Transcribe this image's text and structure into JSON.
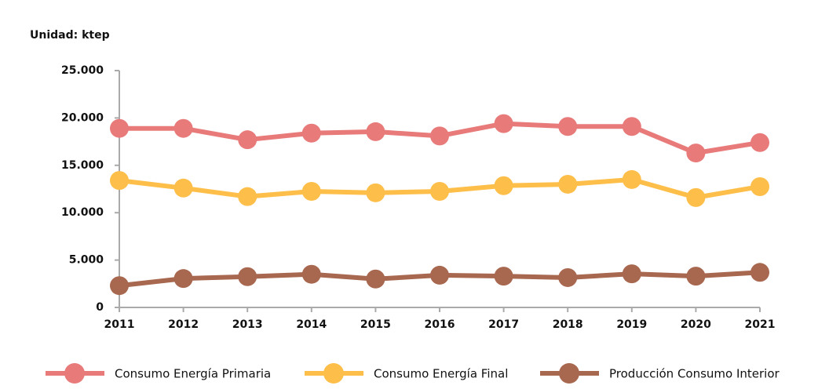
{
  "chart_data": {
    "type": "line",
    "title": "Unidad: ktep",
    "categories": [
      "2011",
      "2012",
      "2013",
      "2014",
      "2015",
      "2016",
      "2017",
      "2018",
      "2019",
      "2020",
      "2021"
    ],
    "series": [
      {
        "name": "Consumo Energía Primaria",
        "color": "#e87a7a",
        "values": [
          18900,
          18900,
          17700,
          18400,
          18550,
          18100,
          19400,
          19100,
          19100,
          16300,
          17400
        ]
      },
      {
        "name": "Consumo Energía Final",
        "color": "#fdbf4a",
        "values": [
          13400,
          12600,
          11700,
          12250,
          12100,
          12250,
          12850,
          13000,
          13500,
          11600,
          12750
        ]
      },
      {
        "name": "Producción Consumo Interior",
        "color": "#a8674f",
        "values": [
          2300,
          3050,
          3250,
          3500,
          3000,
          3400,
          3300,
          3150,
          3550,
          3300,
          3700
        ]
      }
    ],
    "ylim": [
      0,
      25000
    ],
    "yticks": [
      0,
      {
        "value": 5000,
        "label": "5.000"
      },
      {
        "value": 10000,
        "label": "10.000"
      },
      {
        "value": 15000,
        "label": "15.000"
      },
      {
        "value": 20000,
        "label": "20.000"
      },
      {
        "value": 25000,
        "label": "25.000"
      }
    ]
  }
}
